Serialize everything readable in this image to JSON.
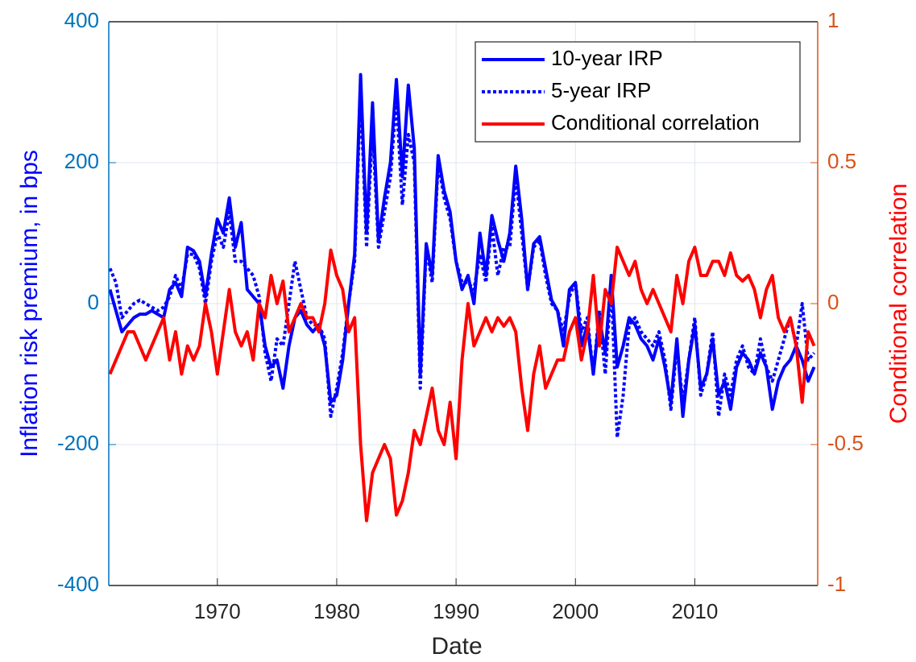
{
  "chart_data": {
    "type": "line",
    "xlabel": "Date",
    "ylabel": "Inflation risk premium, in bps",
    "y2label": "Conditional correlation",
    "xlim": [
      1960.9,
      2020.3
    ],
    "xticks": [
      1970,
      1980,
      1990,
      2000,
      2010
    ],
    "ylim": [
      -400,
      400
    ],
    "yticks": [
      -400,
      -200,
      0,
      200,
      400
    ],
    "y2lim": [
      -1,
      1
    ],
    "y2ticks": [
      -1,
      -0.5,
      0,
      0.5,
      1
    ],
    "grid": true,
    "legend": "northeast",
    "y_axis_color": "#0072bd",
    "y2_axis_color": "#d95319",
    "x": [
      1961,
      1961.5,
      1962,
      1962.5,
      1963,
      1963.5,
      1964,
      1964.5,
      1965,
      1965.5,
      1966,
      1966.5,
      1967,
      1967.5,
      1968,
      1968.5,
      1969,
      1969.5,
      1970,
      1970.5,
      1971,
      1971.5,
      1972,
      1972.5,
      1973,
      1973.5,
      1974,
      1974.5,
      1975,
      1975.5,
      1976,
      1976.5,
      1977,
      1977.5,
      1978,
      1978.5,
      1979,
      1979.5,
      1980,
      1980.5,
      1981,
      1981.5,
      1982,
      1982.5,
      1983,
      1983.5,
      1984,
      1984.5,
      1985,
      1985.5,
      1986,
      1986.5,
      1987,
      1987.5,
      1988,
      1988.5,
      1989,
      1989.5,
      1990,
      1990.5,
      1991,
      1991.5,
      1992,
      1992.5,
      1993,
      1993.5,
      1994,
      1994.5,
      1995,
      1995.5,
      1996,
      1996.5,
      1997,
      1997.5,
      1998,
      1998.5,
      1999,
      1999.5,
      2000,
      2000.5,
      2001,
      2001.5,
      2002,
      2002.5,
      2003,
      2003.5,
      2004,
      2004.5,
      2005,
      2005.5,
      2006,
      2006.5,
      2007,
      2007.5,
      2008,
      2008.5,
      2009,
      2009.5,
      2010,
      2010.5,
      2011,
      2011.5,
      2012,
      2012.5,
      2013,
      2013.5,
      2014,
      2014.5,
      2015,
      2015.5,
      2016,
      2016.5,
      2017,
      2017.5,
      2018,
      2018.5,
      2019,
      2019.5,
      2020
    ],
    "series": [
      {
        "name": "10-year IRP",
        "color": "#0000ff",
        "dash": "solid",
        "values": [
          20,
          -10,
          -40,
          -30,
          -20,
          -15,
          -15,
          -10,
          -15,
          -20,
          20,
          30,
          10,
          80,
          75,
          60,
          10,
          70,
          120,
          100,
          150,
          80,
          115,
          20,
          10,
          0,
          -60,
          -90,
          -80,
          -120,
          -60,
          -20,
          -10,
          -30,
          -40,
          -30,
          -60,
          -140,
          -130,
          -80,
          0,
          70,
          325,
          100,
          285,
          90,
          150,
          200,
          318,
          180,
          310,
          220,
          -100,
          85,
          40,
          210,
          160,
          130,
          60,
          20,
          40,
          0,
          100,
          40,
          125,
          90,
          60,
          100,
          195,
          120,
          20,
          85,
          95,
          50,
          5,
          -10,
          -60,
          20,
          30,
          -60,
          -30,
          -100,
          -20,
          -70,
          40,
          -90,
          -60,
          -20,
          -30,
          -50,
          -60,
          -80,
          -50,
          -90,
          -140,
          -50,
          -160,
          -80,
          -30,
          -120,
          -100,
          -50,
          -130,
          -110,
          -150,
          -90,
          -70,
          -80,
          -100,
          -70,
          -90,
          -150,
          -110,
          -90,
          -80,
          -60,
          -80,
          -110,
          -90
        ]
      },
      {
        "name": "5-year IRP",
        "color": "#0000ff",
        "dash": "dotted",
        "values": [
          50,
          30,
          -20,
          -10,
          0,
          5,
          0,
          -5,
          -10,
          -5,
          10,
          40,
          20,
          70,
          70,
          50,
          0,
          60,
          100,
          80,
          130,
          60,
          60,
          50,
          40,
          10,
          -70,
          -110,
          -50,
          -60,
          0,
          60,
          20,
          -20,
          -30,
          -30,
          -50,
          -160,
          -120,
          -70,
          0,
          60,
          300,
          80,
          250,
          80,
          130,
          180,
          290,
          140,
          240,
          200,
          -120,
          80,
          30,
          200,
          150,
          120,
          60,
          30,
          30,
          20,
          70,
          30,
          110,
          40,
          80,
          80,
          180,
          100,
          20,
          80,
          90,
          40,
          0,
          -10,
          -40,
          10,
          30,
          -40,
          -20,
          -100,
          -10,
          -100,
          30,
          -190,
          -130,
          -30,
          -20,
          -40,
          -50,
          -60,
          -40,
          -80,
          -150,
          -60,
          -140,
          -80,
          -20,
          -130,
          -100,
          -40,
          -160,
          -100,
          -130,
          -80,
          -60,
          -90,
          -100,
          -50,
          -90,
          -110,
          -80,
          -50,
          -20,
          -60,
          0,
          -80,
          -70
        ]
      },
      {
        "name": "Conditional correlation",
        "color": "#ff0000",
        "dash": "solid",
        "axis": "y2",
        "values": [
          -0.25,
          -0.2,
          -0.15,
          -0.1,
          -0.1,
          -0.15,
          -0.2,
          -0.15,
          -0.1,
          -0.05,
          -0.2,
          -0.1,
          -0.25,
          -0.15,
          -0.2,
          -0.15,
          0.0,
          -0.1,
          -0.25,
          -0.1,
          0.05,
          -0.1,
          -0.15,
          -0.1,
          -0.2,
          0.0,
          -0.05,
          0.1,
          0.0,
          0.08,
          -0.1,
          -0.05,
          0.0,
          -0.05,
          -0.05,
          -0.1,
          0.0,
          0.19,
          0.1,
          0.05,
          -0.1,
          -0.05,
          -0.5,
          -0.77,
          -0.6,
          -0.55,
          -0.5,
          -0.55,
          -0.75,
          -0.7,
          -0.6,
          -0.45,
          -0.5,
          -0.4,
          -0.3,
          -0.45,
          -0.5,
          -0.35,
          -0.55,
          -0.2,
          0.0,
          -0.15,
          -0.1,
          -0.05,
          -0.1,
          -0.05,
          -0.08,
          -0.05,
          -0.1,
          -0.3,
          -0.45,
          -0.25,
          -0.15,
          -0.3,
          -0.25,
          -0.2,
          -0.2,
          -0.1,
          -0.05,
          -0.2,
          -0.1,
          0.1,
          -0.15,
          0.05,
          0.0,
          0.2,
          0.15,
          0.1,
          0.15,
          0.05,
          0.0,
          0.05,
          0.0,
          -0.05,
          -0.1,
          0.1,
          0.0,
          0.15,
          0.2,
          0.1,
          0.1,
          0.15,
          0.15,
          0.1,
          0.18,
          0.1,
          0.08,
          0.1,
          0.05,
          -0.05,
          0.05,
          0.1,
          -0.05,
          -0.1,
          -0.05,
          -0.15,
          -0.35,
          -0.1,
          -0.15
        ]
      }
    ]
  }
}
